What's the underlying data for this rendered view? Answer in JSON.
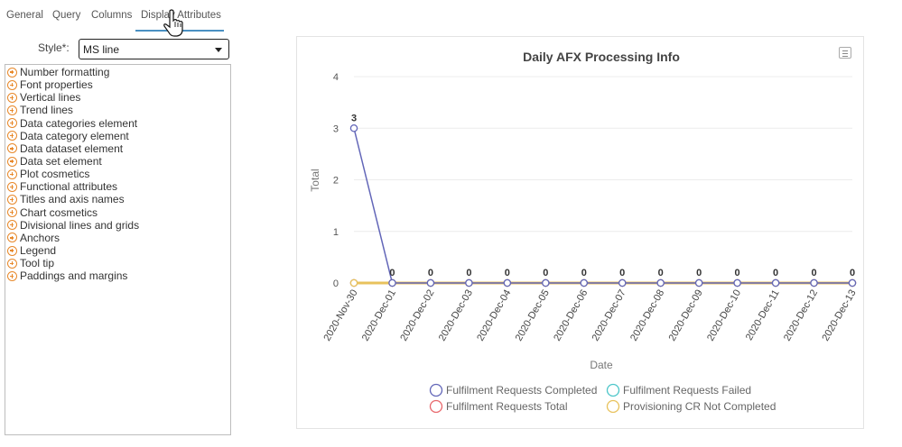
{
  "tabs": [
    "General",
    "Query",
    "Columns",
    "Display Attributes"
  ],
  "style_field": {
    "label": "Style*:",
    "value": "MS line"
  },
  "attributes": [
    "Number formatting",
    "Font properties",
    "Vertical lines",
    "Trend lines",
    "Data categories element",
    "Data category element",
    "Data dataset element",
    "Data set element",
    "Plot cosmetics",
    "Functional attributes",
    "Titles and axis names",
    "Chart cosmetics",
    "Divisional lines and grids",
    "Anchors",
    "Legend",
    "Tool tip",
    "Paddings and margins"
  ],
  "colors": {
    "tab_underline": "#4a90c2",
    "expand_icon": "#e8892b"
  },
  "chart_data": {
    "type": "line",
    "title": "Daily AFX Processing Info",
    "xlabel": "Date",
    "ylabel": "Total",
    "ylim": [
      0,
      4
    ],
    "yticks": [
      0,
      1,
      2,
      3,
      4
    ],
    "categories": [
      "2020-Nov-30",
      "2020-Dec-01",
      "2020-Dec-02",
      "2020-Dec-03",
      "2020-Dec-04",
      "2020-Dec-05",
      "2020-Dec-06",
      "2020-Dec-07",
      "2020-Dec-08",
      "2020-Dec-09",
      "2020-Dec-10",
      "2020-Dec-11",
      "2020-Dec-12",
      "2020-Dec-13"
    ],
    "series": [
      {
        "name": "Fulfilment Requests Completed",
        "color": "#6266b8",
        "values": [
          3,
          0,
          0,
          0,
          0,
          0,
          0,
          0,
          0,
          0,
          0,
          0,
          0,
          0
        ]
      },
      {
        "name": "Fulfilment Requests Failed",
        "color": "#4dc6c9",
        "values": [
          0,
          0,
          0,
          0,
          0,
          0,
          0,
          0,
          0,
          0,
          0,
          0,
          0,
          0
        ]
      },
      {
        "name": "Fulfilment Requests Total",
        "color": "#e8676b",
        "values": [
          0,
          0,
          0,
          0,
          0,
          0,
          0,
          0,
          0,
          0,
          0,
          0,
          0,
          0
        ]
      },
      {
        "name": "Provisioning CR Not Completed",
        "color": "#e8c25c",
        "values": [
          0,
          0,
          0,
          0,
          0,
          0,
          0,
          0,
          0,
          0,
          0,
          0,
          0,
          0
        ]
      }
    ],
    "data_labels": [
      "3",
      "0",
      "0",
      "0",
      "0",
      "0",
      "0",
      "0",
      "0",
      "0",
      "0",
      "0",
      "0",
      "0"
    ],
    "legend_position": "bottom",
    "grid": true
  }
}
